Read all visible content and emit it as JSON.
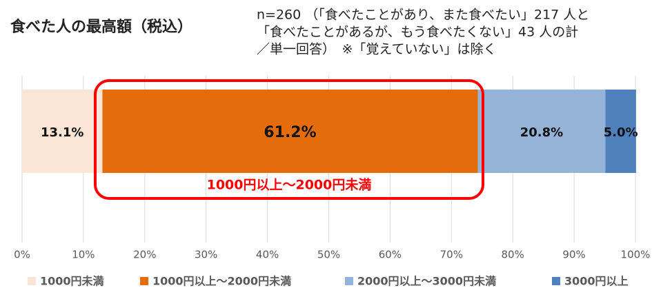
{
  "chart_data": {
    "type": "stacked-barh",
    "title": "食べた人の最高額（税込）",
    "subtitle": [
      "n=260 （「食べたことがあり、また食べたい」217 人と",
      "「食べたことがあるが、もう食べたくない」43 人の計",
      "／単一回答）　※「覚えていない」は除く"
    ],
    "categories": [
      null
    ],
    "series": [
      {
        "name": "1000円未満",
        "color": "#fbe5d6",
        "values": [
          13.1
        ],
        "value_labels": [
          "13.1%"
        ]
      },
      {
        "name": "1000円以上～2000円未満",
        "color": "#e46c0a",
        "values": [
          61.2
        ],
        "value_labels": [
          "61.2%"
        ]
      },
      {
        "name": "2000円以上～3000円未満",
        "color": "#95b3d7",
        "values": [
          20.8
        ],
        "value_labels": [
          "20.8%"
        ]
      },
      {
        "name": "3000円以上",
        "color": "#4f81bd",
        "values": [
          5.0
        ],
        "value_labels": [
          "5.0%"
        ]
      }
    ],
    "annotation": "1000円以上～2000円未満",
    "xlim": [
      0,
      100
    ],
    "xticks": [
      {
        "value": 0,
        "label": "0%"
      },
      {
        "value": 10,
        "label": "10%"
      },
      {
        "value": 20,
        "label": "20%"
      },
      {
        "value": 30,
        "label": "30%"
      },
      {
        "value": 40,
        "label": "40%"
      },
      {
        "value": 50,
        "label": "50%"
      },
      {
        "value": 60,
        "label": "60%"
      },
      {
        "value": 70,
        "label": "70%"
      },
      {
        "value": 80,
        "label": "80%"
      },
      {
        "value": 90,
        "label": "90%"
      },
      {
        "value": 100,
        "label": "100%"
      }
    ],
    "grid": true
  }
}
